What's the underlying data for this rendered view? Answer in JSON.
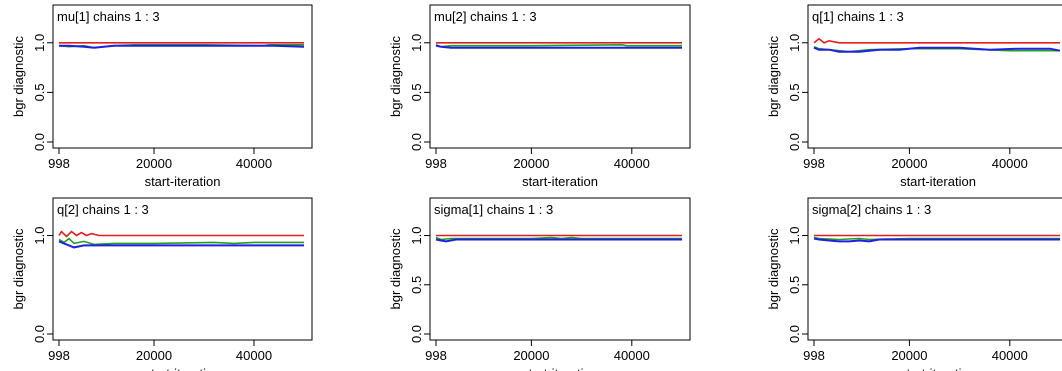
{
  "colors": {
    "chain_1": "#e02020",
    "chain_2": "#20a020",
    "chain_3": "#2020e0",
    "axis": "#000000",
    "background": "#ffffff"
  },
  "chart_data": [
    {
      "type": "line",
      "title": "mu[1] chains 1 : 3",
      "xlabel": "start-iteration",
      "ylabel": "bgr diagnostic",
      "xlim": [
        998,
        50000
      ],
      "ylim": [
        0,
        1.3
      ],
      "xticks": [
        "998",
        "20000",
        "40000"
      ],
      "yticks": [
        "0.0",
        "0.5",
        "1.0"
      ],
      "series": [
        {
          "values_x": [
            998,
            5000,
            10000,
            15000,
            20000,
            30000,
            40000,
            50000
          ],
          "values_y": [
            1.0,
            1.0,
            1.0,
            1.0,
            1.0,
            1.0,
            1.0,
            1.0
          ]
        },
        {
          "values_x": [
            998,
            3000,
            6000,
            8000,
            12000,
            16000,
            20000,
            30000,
            42000,
            43000,
            50000
          ],
          "values_y": [
            0.97,
            0.96,
            0.97,
            0.95,
            0.97,
            0.98,
            0.98,
            0.98,
            0.97,
            0.98,
            0.98
          ]
        },
        {
          "values_x": [
            998,
            3000,
            6000,
            8000,
            10000,
            12000,
            16000,
            20000,
            30000,
            44000,
            50000
          ],
          "values_y": [
            0.97,
            0.97,
            0.96,
            0.95,
            0.96,
            0.97,
            0.97,
            0.97,
            0.97,
            0.97,
            0.96
          ]
        }
      ]
    },
    {
      "type": "line",
      "title": "mu[2] chains 1 : 3",
      "xlabel": "start-iteration",
      "ylabel": "bgr diagnostic",
      "xlim": [
        998,
        50000
      ],
      "ylim": [
        0,
        1.3
      ],
      "xticks": [
        "998",
        "20000",
        "40000"
      ],
      "yticks": [
        "0.0",
        "0.5",
        "1.0"
      ],
      "series": [
        {
          "values_x": [
            998,
            20000,
            50000
          ],
          "values_y": [
            1.0,
            1.0,
            1.0
          ]
        },
        {
          "values_x": [
            998,
            2000,
            4000,
            10000,
            20000,
            38000,
            39000,
            50000
          ],
          "values_y": [
            0.98,
            0.96,
            0.97,
            0.97,
            0.97,
            0.98,
            0.97,
            0.97
          ]
        },
        {
          "values_x": [
            998,
            2000,
            4000,
            10000,
            20000,
            35000,
            50000
          ],
          "values_y": [
            0.97,
            0.96,
            0.95,
            0.95,
            0.95,
            0.95,
            0.95
          ]
        }
      ]
    },
    {
      "type": "line",
      "title": "q[1] chains 1 : 3",
      "xlabel": "start-iteration",
      "ylabel": "bgr diagnostic",
      "xlim": [
        998,
        50000
      ],
      "ylim": [
        0,
        1.3
      ],
      "xticks": [
        "998",
        "20000",
        "40000"
      ],
      "yticks": [
        "0.0",
        "0.5",
        "1.0"
      ],
      "series": [
        {
          "values_x": [
            998,
            2000,
            3000,
            4000,
            6000,
            20000,
            50000
          ],
          "values_y": [
            1.0,
            1.04,
            1.0,
            1.02,
            1.0,
            1.0,
            1.0
          ]
        },
        {
          "values_x": [
            998,
            2000,
            4000,
            8000,
            12000,
            20000,
            30000,
            40000,
            50000
          ],
          "values_y": [
            0.96,
            0.94,
            0.93,
            0.91,
            0.93,
            0.94,
            0.94,
            0.92,
            0.92
          ]
        },
        {
          "values_x": [
            998,
            2000,
            4000,
            6000,
            10000,
            14000,
            18000,
            22000,
            30000,
            36000,
            42000,
            48000,
            50000
          ],
          "values_y": [
            0.95,
            0.93,
            0.93,
            0.91,
            0.91,
            0.93,
            0.93,
            0.95,
            0.95,
            0.93,
            0.94,
            0.94,
            0.92
          ]
        }
      ]
    },
    {
      "type": "line",
      "title": "q[2] chains 1 : 3",
      "xlabel": "start-iteration",
      "ylabel": "bgr diagnostic",
      "xlim": [
        998,
        50000
      ],
      "ylim": [
        0,
        1.3
      ],
      "xticks": [
        "998",
        "20000",
        "40000"
      ],
      "yticks": [
        "0.0",
        "1.0"
      ],
      "series": [
        {
          "values_x": [
            998,
            1500,
            2500,
            3500,
            4500,
            5500,
            6500,
            7500,
            9000,
            20000,
            50000
          ],
          "values_y": [
            1.0,
            1.04,
            0.99,
            1.04,
            1.0,
            1.03,
            1.0,
            1.02,
            1.0,
            1.0,
            1.0
          ]
        },
        {
          "values_x": [
            998,
            2000,
            3000,
            4000,
            6000,
            8000,
            12000,
            20000,
            32000,
            36000,
            40000,
            50000
          ],
          "values_y": [
            0.96,
            0.93,
            0.97,
            0.92,
            0.94,
            0.91,
            0.92,
            0.92,
            0.93,
            0.92,
            0.93,
            0.93
          ]
        },
        {
          "values_x": [
            998,
            2000,
            4000,
            6000,
            10000,
            20000,
            32000,
            36000,
            42000,
            50000
          ],
          "values_y": [
            0.94,
            0.92,
            0.88,
            0.9,
            0.9,
            0.9,
            0.9,
            0.9,
            0.9,
            0.9
          ]
        }
      ]
    },
    {
      "type": "line",
      "title": "sigma[1] chains 1 : 3",
      "xlabel": "start-iteration",
      "ylabel": "bgr diagnostic",
      "xlim": [
        998,
        50000
      ],
      "ylim": [
        0,
        1.3
      ],
      "xticks": [
        "998",
        "20000",
        "40000"
      ],
      "yticks": [
        "0.0",
        "0.5",
        "1.0"
      ],
      "series": [
        {
          "values_x": [
            998,
            20000,
            50000
          ],
          "values_y": [
            1.0,
            1.0,
            1.0
          ]
        },
        {
          "values_x": [
            998,
            2000,
            4000,
            10000,
            20000,
            24000,
            26000,
            28000,
            30000,
            50000
          ],
          "values_y": [
            0.98,
            0.96,
            0.97,
            0.97,
            0.97,
            0.98,
            0.97,
            0.98,
            0.97,
            0.97
          ]
        },
        {
          "values_x": [
            998,
            2000,
            3000,
            5000,
            10000,
            20000,
            28000,
            50000
          ],
          "values_y": [
            0.96,
            0.95,
            0.94,
            0.96,
            0.96,
            0.96,
            0.96,
            0.96
          ]
        }
      ]
    },
    {
      "type": "line",
      "title": "sigma[2] chains 1 : 3",
      "xlabel": "start-iteration",
      "ylabel": "bgr diagnostic",
      "xlim": [
        998,
        50000
      ],
      "ylim": [
        0,
        1.3
      ],
      "xticks": [
        "998",
        "20000",
        "40000"
      ],
      "yticks": [
        "0.0",
        "0.5",
        "1.0"
      ],
      "series": [
        {
          "values_x": [
            998,
            20000,
            50000
          ],
          "values_y": [
            1.0,
            1.0,
            1.0
          ]
        },
        {
          "values_x": [
            998,
            2000,
            6000,
            10000,
            12000,
            20000,
            50000
          ],
          "values_y": [
            0.98,
            0.97,
            0.96,
            0.97,
            0.96,
            0.97,
            0.97
          ]
        },
        {
          "values_x": [
            998,
            2000,
            4000,
            6000,
            8000,
            10000,
            12000,
            14000,
            20000,
            50000
          ],
          "values_y": [
            0.97,
            0.96,
            0.95,
            0.94,
            0.94,
            0.95,
            0.94,
            0.96,
            0.96,
            0.96
          ]
        }
      ]
    }
  ]
}
